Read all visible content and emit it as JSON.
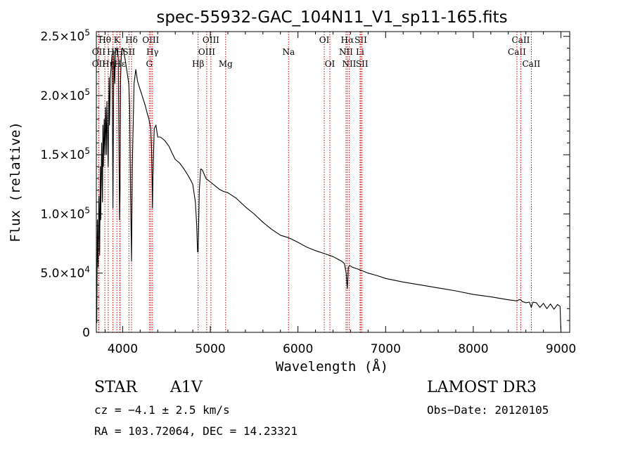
{
  "chart_data": {
    "type": "line",
    "title": "spec-55932-GAC_104N11_V1_sp11-165.fits",
    "xlabel": "Wavelength (Å)",
    "ylabel": "Flux (relative)",
    "xlim": [
      3700,
      9100
    ],
    "ylim": [
      0,
      254000
    ],
    "xticks": [
      4000,
      5000,
      6000,
      7000,
      8000,
      9000
    ],
    "xtick_labels": [
      "4000",
      "5000",
      "6000",
      "7000",
      "8000",
      "9000"
    ],
    "yticks": [
      {
        "value": 0,
        "mantissa": "0",
        "exp": ""
      },
      {
        "value": 50000,
        "mantissa": "5.0×10",
        "exp": "4"
      },
      {
        "value": 100000,
        "mantissa": "1.0×10",
        "exp": "5"
      },
      {
        "value": 150000,
        "mantissa": "1.5×10",
        "exp": "5"
      },
      {
        "value": 200000,
        "mantissa": "2.0×10",
        "exp": "5"
      },
      {
        "value": 250000,
        "mantissa": "2.5×10",
        "exp": "5"
      }
    ],
    "spectrum": {
      "name": "flux",
      "x": [
        3700,
        3705,
        3712,
        3720,
        3730,
        3738,
        3745,
        3750,
        3760,
        3770,
        3775,
        3780,
        3790,
        3797,
        3805,
        3815,
        3820,
        3835,
        3845,
        3850,
        3860,
        3880,
        3889,
        3900,
        3910,
        3920,
        3935,
        3950,
        3960,
        3965,
        3970,
        3975,
        3985,
        3995,
        4000,
        4010,
        4030,
        4050,
        4070,
        4080,
        4090,
        4101,
        4110,
        4130,
        4150,
        4170,
        4200,
        4230,
        4260,
        4280,
        4300,
        4320,
        4330,
        4340,
        4345,
        4360,
        4380,
        4400,
        4430,
        4480,
        4530,
        4560,
        4600,
        4650,
        4700,
        4750,
        4780,
        4800,
        4830,
        4845,
        4855,
        4861,
        4867,
        4875,
        4890,
        4910,
        4950,
        5000,
        5050,
        5100,
        5150,
        5200,
        5300,
        5400,
        5500,
        5600,
        5700,
        5800,
        5890,
        5920,
        6000,
        6100,
        6200,
        6300,
        6400,
        6450,
        6500,
        6530,
        6550,
        6558,
        6563,
        6568,
        6575,
        6590,
        6620,
        6700,
        6800,
        6900,
        7000,
        7200,
        7400,
        7600,
        7800,
        8000,
        8200,
        8400,
        8500,
        8520,
        8542,
        8560,
        8600,
        8640,
        8662,
        8680,
        8720,
        8760,
        8800,
        8840,
        8880,
        8920,
        8960,
        8990,
        9000
      ],
      "y": [
        25000,
        8000,
        95000,
        55000,
        115000,
        65000,
        140000,
        95000,
        160000,
        110000,
        175000,
        140000,
        180000,
        150000,
        190000,
        150000,
        195000,
        140000,
        215000,
        175000,
        215000,
        235000,
        105000,
        238000,
        210000,
        240000,
        238000,
        232000,
        140000,
        95000,
        120000,
        210000,
        235000,
        240000,
        240000,
        238000,
        230000,
        220000,
        210000,
        190000,
        120000,
        60000,
        140000,
        210000,
        222000,
        212000,
        205000,
        198000,
        191000,
        185000,
        180000,
        172000,
        155000,
        105000,
        130000,
        172000,
        175000,
        165000,
        165000,
        162000,
        157000,
        152000,
        146000,
        143000,
        138000,
        132000,
        128000,
        125000,
        110000,
        90000,
        68000,
        68000,
        90000,
        120000,
        138000,
        137000,
        130000,
        127000,
        124000,
        121000,
        119000,
        118000,
        113000,
        106000,
        100000,
        93000,
        87000,
        82000,
        80000,
        79000,
        76000,
        72000,
        69000,
        66500,
        64000,
        62000,
        60000,
        58000,
        50000,
        41000,
        37000,
        43000,
        55000,
        56500,
        55000,
        53000,
        50000,
        48000,
        45500,
        42500,
        40000,
        37500,
        35000,
        32000,
        30000,
        27500,
        26500,
        27500,
        27500,
        26000,
        25000,
        25500,
        21000,
        25500,
        25000,
        21000,
        24500,
        20000,
        24000,
        19500,
        23500,
        22000,
        1000
      ]
    },
    "lines": [
      {
        "name": "Hθ",
        "x": 3797,
        "row": 0
      },
      {
        "name": "OII",
        "x": 3727,
        "row": 1
      },
      {
        "name": "OII",
        "x": 3727,
        "row": 2
      },
      {
        "name": "Hη",
        "x": 3835,
        "row": 2
      },
      {
        "name": "Hζ",
        "x": 3889,
        "row": 1
      },
      {
        "name": "K",
        "x": 3934,
        "row": 0
      },
      {
        "name": "H",
        "x": 3968,
        "row": 1
      },
      {
        "name": "Hε",
        "x": 3970,
        "row": 2
      },
      {
        "name": "SII",
        "x": 4072,
        "row": 1
      },
      {
        "name": "Hδ",
        "x": 4101,
        "row": 0
      },
      {
        "name": "OIII",
        "x": 4320,
        "row": 0
      },
      {
        "name": "Hγ",
        "x": 4340,
        "row": 1
      },
      {
        "name": "G",
        "x": 4304,
        "row": 2
      },
      {
        "name": "Hβ",
        "x": 4861,
        "row": 2
      },
      {
        "name": "OIII",
        "x": 4959,
        "row": 1
      },
      {
        "name": "OIII",
        "x": 5007,
        "row": 0
      },
      {
        "name": "Mg",
        "x": 5175,
        "row": 2
      },
      {
        "name": "Na",
        "x": 5893,
        "row": 1
      },
      {
        "name": "OI",
        "x": 6300,
        "row": 0
      },
      {
        "name": "OI",
        "x": 6364,
        "row": 2
      },
      {
        "name": "NII",
        "x": 6548,
        "row": 1
      },
      {
        "name": "Hα",
        "x": 6563,
        "row": 0
      },
      {
        "name": "NII",
        "x": 6584,
        "row": 2
      },
      {
        "name": "Li",
        "x": 6708,
        "row": 1
      },
      {
        "name": "SII",
        "x": 6717,
        "row": 0
      },
      {
        "name": "SII",
        "x": 6731,
        "row": 2
      },
      {
        "name": "CaII",
        "x": 8498,
        "row": 1
      },
      {
        "name": "CaII",
        "x": 8542,
        "row": 0
      },
      {
        "name": "CaII",
        "x": 8662,
        "row": 2
      }
    ]
  },
  "info": {
    "object_class": "STAR",
    "subclass": "A1V",
    "survey": "LAMOST DR3",
    "redshift": "cz = −4.1 ± 2.5 km/s",
    "obs_date": "Obs−Date: 20120105",
    "coords": "RA = 103.72064, DEC =  14.23321"
  },
  "colors": {
    "spectrum": "#000000",
    "line_marker": "#cc0000",
    "axis": "#000000"
  }
}
